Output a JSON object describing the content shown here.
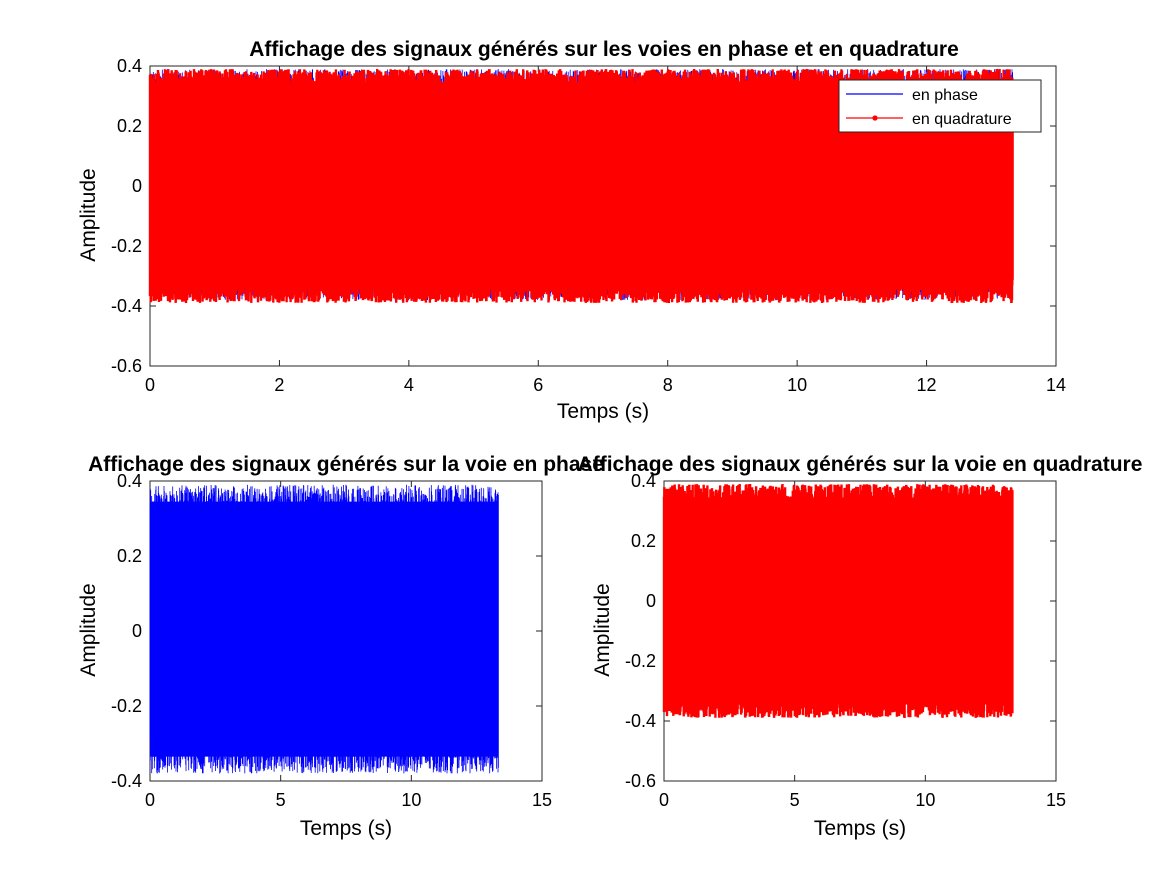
{
  "chart_data": [
    {
      "type": "line",
      "title": "Affichage des signaux générés sur les voies en phase et en quadrature",
      "xlabel": "Temps (s)",
      "ylabel": "Amplitude",
      "xlim": [
        0,
        14
      ],
      "ylim": [
        -0.6,
        0.4
      ],
      "xticks": [
        "0",
        "2",
        "4",
        "6",
        "8",
        "10",
        "12",
        "14"
      ],
      "yticks": [
        "-0.6",
        "-0.4",
        "-0.2",
        "0",
        "0.2",
        "0.4"
      ],
      "legend_position": "top-right",
      "grid": false,
      "series": [
        {
          "name": "en phase",
          "color": "#0000ff",
          "x_range": [
            0,
            13.33
          ],
          "amplitude_range": [
            -0.38,
            0.39
          ]
        },
        {
          "name": "en quadrature",
          "color": "#ff0000",
          "marker": "dot",
          "x_range": [
            0,
            13.33
          ],
          "amplitude_range": [
            -0.39,
            0.39
          ]
        }
      ]
    },
    {
      "type": "line",
      "title": "Affichage des signaux générés sur la voie en phase",
      "xlabel": "Temps (s)",
      "ylabel": "Amplitude",
      "xlim": [
        0,
        15
      ],
      "ylim": [
        -0.4,
        0.4
      ],
      "xticks": [
        "0",
        "5",
        "10",
        "15"
      ],
      "yticks": [
        "-0.4",
        "-0.2",
        "0",
        "0.2",
        "0.4"
      ],
      "grid": false,
      "series": [
        {
          "color": "#0000ff",
          "x_range": [
            0,
            13.33
          ],
          "amplitude_range": [
            -0.38,
            0.39
          ]
        }
      ]
    },
    {
      "type": "line",
      "title": "Affichage des signaux générés sur la voie en quadrature",
      "xlabel": "Temps (s)",
      "ylabel": "Amplitude",
      "xlim": [
        0,
        15
      ],
      "ylim": [
        -0.6,
        0.4
      ],
      "xticks": [
        "0",
        "5",
        "10",
        "15"
      ],
      "yticks": [
        "-0.6",
        "-0.4",
        "-0.2",
        "0",
        "0.2",
        "0.4"
      ],
      "grid": false,
      "series": [
        {
          "color": "#ff0000",
          "marker": "dot",
          "x_range": [
            0,
            13.33
          ],
          "amplitude_range": [
            -0.39,
            0.39
          ]
        }
      ]
    }
  ]
}
